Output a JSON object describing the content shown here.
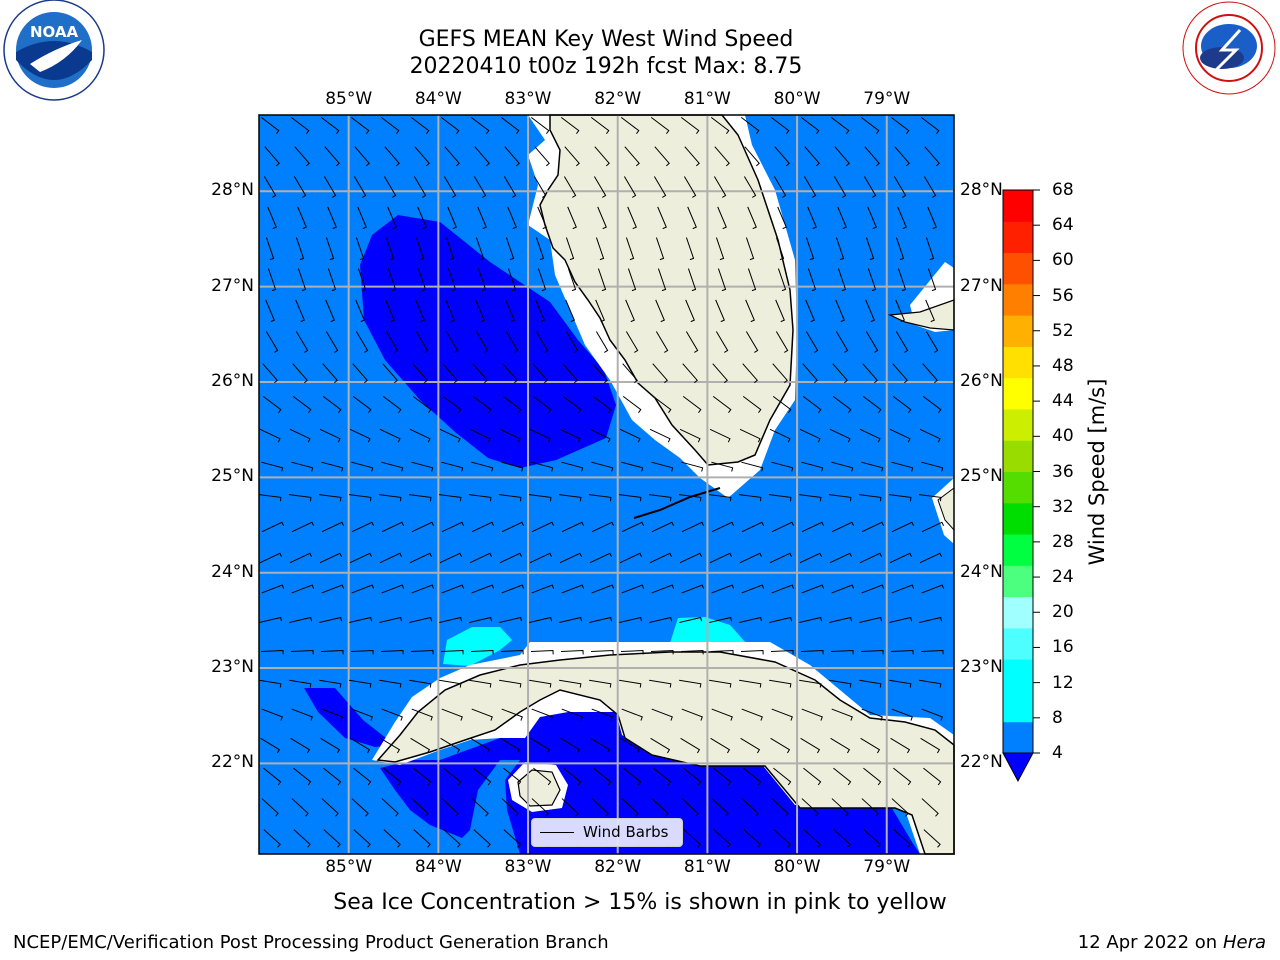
{
  "header": {
    "title_line1": "GEFS MEAN Key West Wind Speed",
    "title_line2": "20220410 t00z 192h fcst   Max: 8.75"
  },
  "logos": {
    "left": {
      "name": "NOAA",
      "ring_text": "NATIONAL OCEANIC AND ATMOSPHERIC ADMINISTRATION",
      "bottom_text": "U.S. DEPARTMENT OF COMMERCE"
    },
    "right": {
      "ring_text": "NATIONAL WEATHER SERVICE"
    }
  },
  "map": {
    "lon_labels": [
      "85°W",
      "84°W",
      "83°W",
      "82°W",
      "81°W",
      "80°W",
      "79°W"
    ],
    "lat_labels": [
      "28°N",
      "27°N",
      "26°N",
      "25°N",
      "24°N",
      "23°N",
      "22°N"
    ],
    "lon_range": [
      -86.0,
      -78.25
    ],
    "lat_range": [
      21.05,
      28.8
    ],
    "lon_ticks": [
      -85,
      -84,
      -83,
      -82,
      -81,
      -80,
      -79
    ],
    "lat_ticks": [
      28,
      27,
      26,
      25,
      24,
      23,
      22
    ],
    "colors": {
      "ocean": "#0080ff",
      "dark": "#0000ff",
      "cyan": "#00ffff",
      "land": "#eeeedc",
      "grid": "#b0b0b0"
    }
  },
  "legend": {
    "label": "Wind Barbs"
  },
  "colorbar": {
    "title": "Wind Speed [m/s]",
    "ticks": [
      "68",
      "64",
      "60",
      "56",
      "52",
      "48",
      "44",
      "40",
      "36",
      "32",
      "28",
      "24",
      "20",
      "16",
      "12",
      "8",
      "4"
    ],
    "colors": [
      "#0000ff",
      "#0080ff",
      "#00ffff",
      "#00ffff",
      "#4dffff",
      "#a0ffff",
      "#4dff7f",
      "#00ff40",
      "#00dd00",
      "#55dd00",
      "#99dd00",
      "#ccee00",
      "#ffff00",
      "#ffe000",
      "#ffb000",
      "#ff8000",
      "#ff5000",
      "#ff2000",
      "#ff0000"
    ]
  },
  "caption": "Sea Ice Concentration > 15% is shown in pink to yellow",
  "footer": {
    "left": "NCEP/EMC/Verification Post Processing Product Generation Branch",
    "right_prefix": "12 Apr 2022 on ",
    "right_italic": "Hera"
  }
}
